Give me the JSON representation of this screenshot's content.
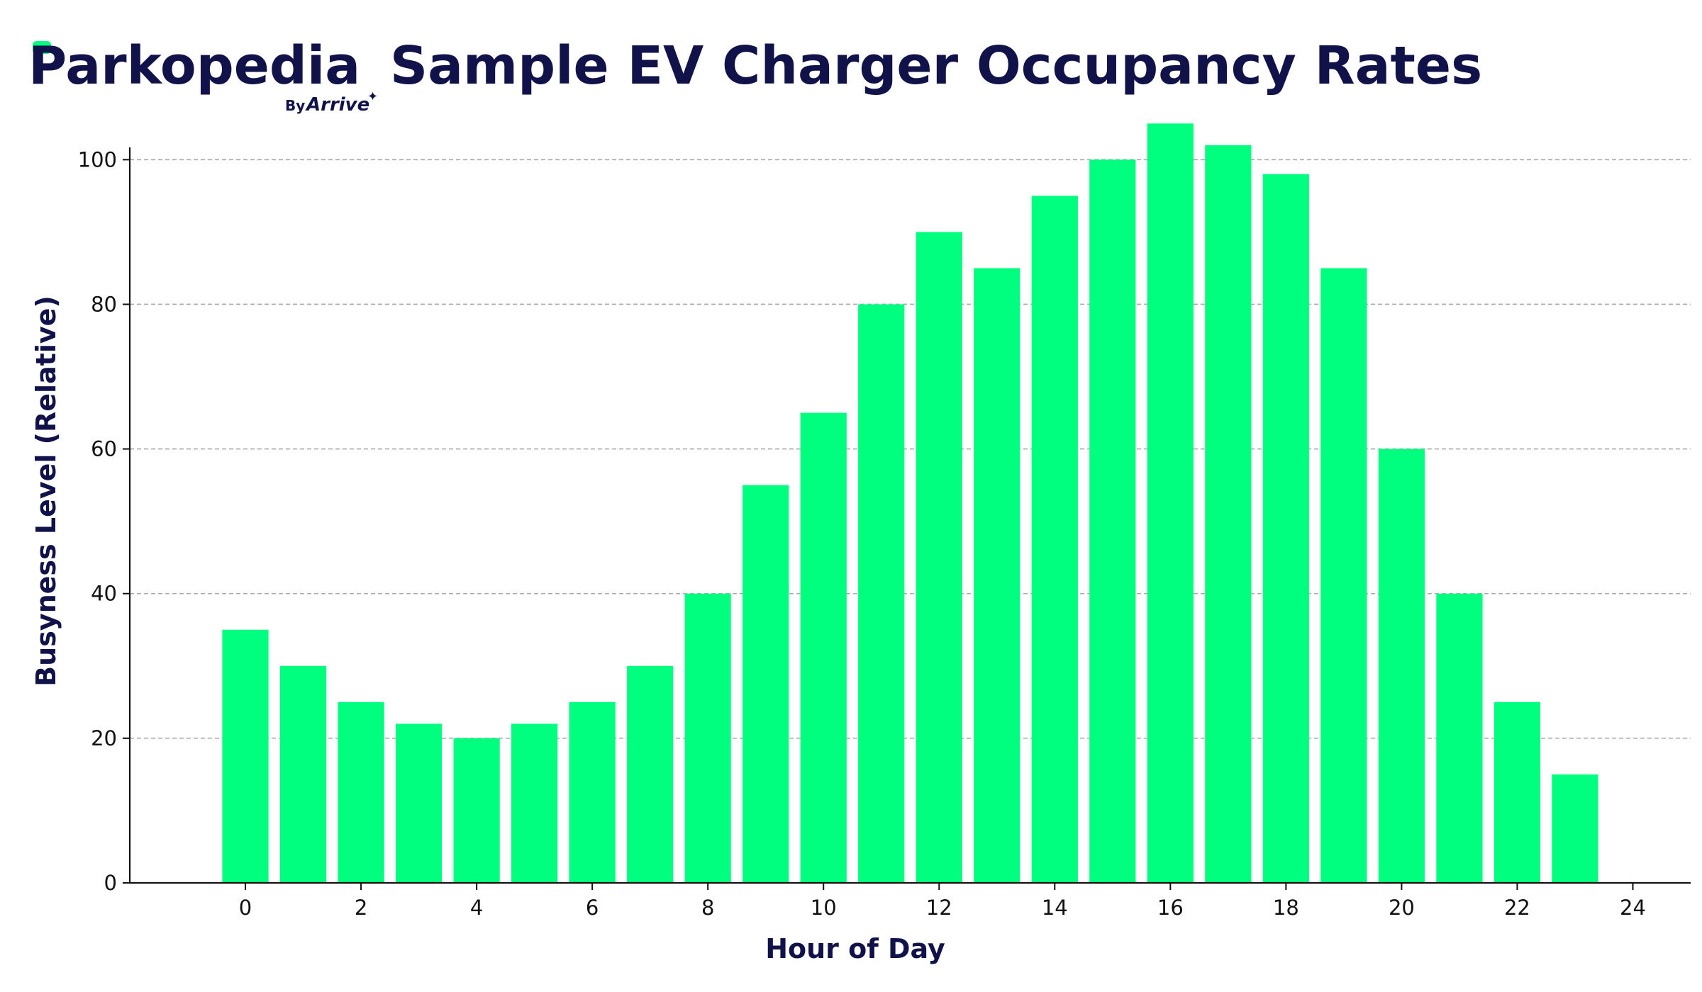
{
  "logo": {
    "name": "Parkopedia",
    "tagline_prefix": "By",
    "tagline_brand": "Arrive",
    "accent_color": "#00ff7f",
    "text_color": "#12124a"
  },
  "colors": {
    "bar": "#00ff7f",
    "title": "#12124a",
    "grid": "#aaaaaa",
    "axis": "#111111"
  },
  "chart_data": {
    "type": "bar",
    "title": "Sample EV Charger Occupancy Rates",
    "xlabel": "Hour of Day",
    "ylabel": "Busyness Level (Relative)",
    "x": [
      0,
      1,
      2,
      3,
      4,
      5,
      6,
      7,
      8,
      9,
      10,
      11,
      12,
      13,
      14,
      15,
      16,
      17,
      18,
      19,
      20,
      21,
      22,
      23
    ],
    "values": [
      35,
      30,
      25,
      22,
      20,
      22,
      25,
      30,
      40,
      55,
      65,
      80,
      90,
      85,
      95,
      100,
      105,
      102,
      98,
      85,
      60,
      40,
      25,
      15
    ],
    "xlim": [
      -2,
      25
    ],
    "ylim": [
      0,
      101.7
    ],
    "xticks": [
      0,
      2,
      4,
      6,
      8,
      10,
      12,
      14,
      16,
      18,
      20,
      22,
      24
    ],
    "yticks": [
      0,
      20,
      40,
      60,
      80,
      100
    ],
    "grid": "y-dashed",
    "legend": "none"
  }
}
